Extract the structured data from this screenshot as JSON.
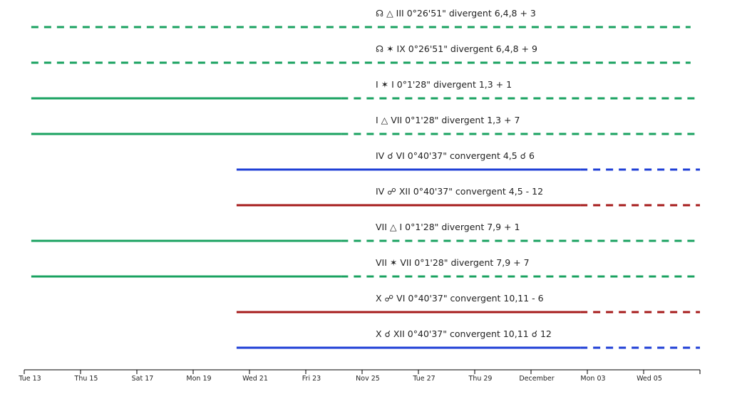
{
  "chart_data": {
    "type": "timeline",
    "title": "",
    "xlabel": "",
    "ylabel": "",
    "x_domain": [
      "2018-11-13T00:00",
      "2018-12-07T00:00"
    ],
    "x_ticks": [
      {
        "date": "2018-11-13",
        "label": "Tue 13"
      },
      {
        "date": "2018-11-15",
        "label": "Thu 15"
      },
      {
        "date": "2018-11-17",
        "label": "Sat 17"
      },
      {
        "date": "2018-11-19",
        "label": "Mon 19"
      },
      {
        "date": "2018-11-21",
        "label": "Wed 21"
      },
      {
        "date": "2018-11-23",
        "label": "Fri 23"
      },
      {
        "date": "2018-11-25",
        "label": "Nov 25"
      },
      {
        "date": "2018-11-27",
        "label": "Tue 27"
      },
      {
        "date": "2018-11-29",
        "label": "Thu 29"
      },
      {
        "date": "2018-12-01",
        "label": "December"
      },
      {
        "date": "2018-12-03",
        "label": "Mon 03"
      },
      {
        "date": "2018-12-05",
        "label": "Wed 05"
      }
    ],
    "colors": {
      "trine_sextile": "#1aa260",
      "conjunction": "#1f3fd6",
      "opposition": "#a61b1b"
    },
    "rows": [
      {
        "label": "☊ △ III 0°26'51\" divergent 6,4,8 + 3",
        "color": "#1aa260",
        "solid_start": "2018-11-13T06:00",
        "solid_end": null,
        "dashed_end": "2018-12-06T16:00"
      },
      {
        "label": "☊ ✶ IX 0°26'51\" divergent 6,4,8 + 9",
        "color": "#1aa260",
        "solid_start": "2018-11-13T06:00",
        "solid_end": null,
        "dashed_end": "2018-12-06T16:00"
      },
      {
        "label": "I ✶ I 0°1'28\" divergent 1,3 + 1",
        "color": "#1aa260",
        "solid_start": "2018-11-13T06:00",
        "solid_end": "2018-11-24T06:00",
        "dashed_end": "2018-12-07T00:00"
      },
      {
        "label": "I △ VII 0°1'28\" divergent 1,3 + 7",
        "color": "#1aa260",
        "solid_start": "2018-11-13T06:00",
        "solid_end": "2018-11-24T06:00",
        "dashed_end": "2018-12-07T00:00"
      },
      {
        "label": "IV ☌ VI 0°40'37\" convergent 4,5 ☌ 6",
        "color": "#1f3fd6",
        "solid_start": "2018-11-20T13:00",
        "solid_end": "2018-12-02T18:00",
        "dashed_end": "2018-12-07T00:00"
      },
      {
        "label": "IV ☍ XII 0°40'37\" convergent 4,5 - 12",
        "color": "#a61b1b",
        "solid_start": "2018-11-20T13:00",
        "solid_end": "2018-12-02T18:00",
        "dashed_end": "2018-12-07T00:00"
      },
      {
        "label": "VII △ I 0°1'28\" divergent 7,9 + 1",
        "color": "#1aa260",
        "solid_start": "2018-11-13T06:00",
        "solid_end": "2018-11-24T06:00",
        "dashed_end": "2018-12-07T00:00"
      },
      {
        "label": "VII ✶ VII 0°1'28\" divergent 7,9 + 7",
        "color": "#1aa260",
        "solid_start": "2018-11-13T06:00",
        "solid_end": "2018-11-24T06:00",
        "dashed_end": "2018-12-07T00:00"
      },
      {
        "label": "X ☍ VI 0°40'37\" convergent 10,11 - 6",
        "color": "#a61b1b",
        "solid_start": "2018-11-20T13:00",
        "solid_end": "2018-12-02T18:00",
        "dashed_end": "2018-12-07T00:00"
      },
      {
        "label": "X ☌ XII 0°40'37\" convergent 10,11 ☌ 12",
        "color": "#1f3fd6",
        "solid_start": "2018-11-20T13:00",
        "solid_end": "2018-12-02T18:00",
        "dashed_end": "2018-12-07T00:00"
      }
    ]
  }
}
